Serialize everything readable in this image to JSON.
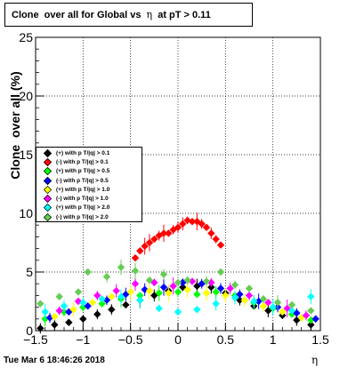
{
  "chart_data": {
    "type": "scatter",
    "title_parts": [
      "Clone  over all for Global vs ",
      "η",
      " at pT > 0.11"
    ],
    "ylabel": "Clone  over all (%)",
    "xlabel": "η",
    "xlim": [
      -1.5,
      1.5
    ],
    "ylim": [
      0,
      25
    ],
    "x_ticks": [
      "−1.5",
      "−1",
      "−0.5",
      "0",
      "0.5",
      "1",
      "1.5"
    ],
    "y_ticks": [
      "0",
      "5",
      "10",
      "15",
      "20",
      "25"
    ],
    "grid": true,
    "legend_position": "left-middle",
    "series": [
      {
        "name": "(+) with p T/|q| > 0.1",
        "color": "#000000",
        "points": [
          [
            -1.45,
            0.2
          ],
          [
            -1.3,
            0.5
          ],
          [
            -1.15,
            0.7
          ],
          [
            -1.0,
            1.0
          ],
          [
            -0.85,
            1.4
          ],
          [
            -0.7,
            1.8
          ],
          [
            -0.55,
            2.2
          ],
          [
            -0.4,
            2.6
          ],
          [
            -0.25,
            3.0
          ],
          [
            -0.1,
            3.4
          ],
          [
            0.05,
            3.7
          ],
          [
            0.2,
            3.8
          ],
          [
            0.35,
            3.7
          ],
          [
            0.5,
            3.2
          ],
          [
            0.65,
            2.6
          ],
          [
            0.8,
            2.1
          ],
          [
            0.95,
            1.7
          ],
          [
            1.1,
            1.3
          ],
          [
            1.25,
            0.9
          ],
          [
            1.4,
            0.5
          ]
        ]
      },
      {
        "name": "(-) with p T/|q| > 0.1",
        "color": "#ff0000",
        "points": [
          [
            -0.45,
            6.2
          ],
          [
            -0.4,
            6.8
          ],
          [
            -0.35,
            7.2
          ],
          [
            -0.3,
            7.5
          ],
          [
            -0.25,
            7.8
          ],
          [
            -0.2,
            8.1
          ],
          [
            -0.15,
            8.3
          ],
          [
            -0.1,
            8.3
          ],
          [
            -0.05,
            8.6
          ],
          [
            0.0,
            8.8
          ],
          [
            0.05,
            9.1
          ],
          [
            0.1,
            9.4
          ],
          [
            0.15,
            9.3
          ],
          [
            0.2,
            9.3
          ],
          [
            0.25,
            9.1
          ],
          [
            0.3,
            8.8
          ],
          [
            0.35,
            8.3
          ],
          [
            0.4,
            7.8
          ],
          [
            0.45,
            7.3
          ]
        ]
      },
      {
        "name": "(+) with p T/|q| > 0.5",
        "color": "#00ff00",
        "points": [
          [
            -1.4,
            1.0
          ],
          [
            -1.2,
            1.6
          ],
          [
            -1.0,
            2.0
          ],
          [
            -0.8,
            2.3
          ],
          [
            -0.6,
            2.7
          ],
          [
            -0.4,
            3.0
          ],
          [
            -0.2,
            3.2
          ],
          [
            0.0,
            3.3
          ],
          [
            0.2,
            3.1
          ],
          [
            0.4,
            3.3
          ],
          [
            0.6,
            3.0
          ],
          [
            0.8,
            2.4
          ],
          [
            1.0,
            1.9
          ],
          [
            1.2,
            1.4
          ],
          [
            1.4,
            0.9
          ]
        ]
      },
      {
        "name": "(-) with p T/|q| > 0.5",
        "color": "#0000ff",
        "points": [
          [
            -1.35,
            1.1
          ],
          [
            -1.15,
            1.6
          ],
          [
            -0.95,
            2.1
          ],
          [
            -0.75,
            2.6
          ],
          [
            -0.55,
            3.1
          ],
          [
            -0.35,
            3.5
          ],
          [
            -0.15,
            3.7
          ],
          [
            0.05,
            4.1
          ],
          [
            0.25,
            4.0
          ],
          [
            0.45,
            3.6
          ],
          [
            0.65,
            3.1
          ],
          [
            0.85,
            2.5
          ],
          [
            1.05,
            2.0
          ],
          [
            1.25,
            1.5
          ],
          [
            1.45,
            1.0
          ]
        ]
      },
      {
        "name": "(+) with p T/|q| > 1.0",
        "color": "#ffff00",
        "points": [
          [
            -1.3,
            1.2
          ],
          [
            -1.1,
            1.8
          ],
          [
            -0.9,
            2.4
          ],
          [
            -0.7,
            2.9
          ],
          [
            -0.5,
            3.3
          ],
          [
            -0.3,
            3.4
          ],
          [
            -0.1,
            3.2
          ],
          [
            0.1,
            3.5
          ],
          [
            0.3,
            3.2
          ],
          [
            0.5,
            3.0
          ],
          [
            0.7,
            2.6
          ],
          [
            0.9,
            2.1
          ],
          [
            1.1,
            1.6
          ],
          [
            1.3,
            1.1
          ]
        ]
      },
      {
        "name": "(-) with p T/|q| > 1.0",
        "color": "#ff00ff",
        "points": [
          [
            -1.25,
            1.7
          ],
          [
            -1.05,
            2.5
          ],
          [
            -0.85,
            3.0
          ],
          [
            -0.65,
            3.4
          ],
          [
            -0.45,
            4.0
          ],
          [
            -0.25,
            4.1
          ],
          [
            -0.05,
            3.8
          ],
          [
            0.15,
            4.2
          ],
          [
            0.35,
            4.1
          ],
          [
            0.55,
            3.6
          ],
          [
            0.75,
            3.0
          ],
          [
            0.95,
            2.4
          ],
          [
            1.15,
            1.9
          ],
          [
            1.35,
            1.3
          ]
        ]
      },
      {
        "name": "(+) with p T/|q| > 2.0",
        "color": "#00ffff",
        "points": [
          [
            -1.4,
            1.6
          ],
          [
            -1.2,
            2.1
          ],
          [
            -1.0,
            2.4
          ],
          [
            -0.8,
            2.7
          ],
          [
            -0.6,
            2.9
          ],
          [
            -0.4,
            2.6
          ],
          [
            -0.2,
            1.9
          ],
          [
            0.0,
            1.6
          ],
          [
            0.2,
            1.8
          ],
          [
            0.4,
            2.3
          ],
          [
            0.6,
            2.8
          ],
          [
            0.8,
            2.5
          ],
          [
            1.0,
            2.0
          ],
          [
            1.2,
            1.7
          ],
          [
            1.4,
            2.9
          ]
        ]
      },
      {
        "name": "(-) with p T/|q| > 2.0",
        "color": "#66cc55",
        "points": [
          [
            -1.45,
            2.3
          ],
          [
            -1.25,
            2.9
          ],
          [
            -1.05,
            3.3
          ],
          [
            -0.95,
            5.0
          ],
          [
            -0.75,
            4.6
          ],
          [
            -0.6,
            5.4
          ],
          [
            -0.45,
            5.1
          ],
          [
            -0.3,
            4.3
          ],
          [
            -0.15,
            4.8
          ],
          [
            0.0,
            4.1
          ],
          [
            0.1,
            4.3
          ],
          [
            0.3,
            4.2
          ],
          [
            0.45,
            5.0
          ],
          [
            0.6,
            3.9
          ],
          [
            0.75,
            3.6
          ],
          [
            0.9,
            2.7
          ],
          [
            1.05,
            2.4
          ],
          [
            1.2,
            2.2
          ],
          [
            1.4,
            1.7
          ]
        ]
      }
    ]
  },
  "footer": {
    "timestamp": "Tue Mar  6 18:46:26 2018"
  }
}
